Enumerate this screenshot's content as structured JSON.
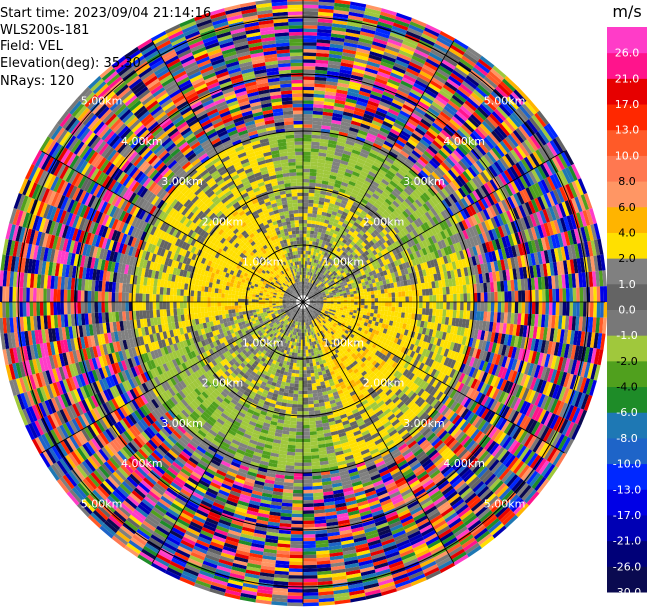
{
  "header": {
    "start_time": "Start time: 2023/09/04 21:14:16",
    "instrument": "WLS200s-181",
    "field": "Field: VEL",
    "elevation": "Elevation(deg): 35.30",
    "nrays": "NRays: 120"
  },
  "chart_data": {
    "type": "heatmap",
    "plot_kind": "ppi_polar",
    "n_rays": 120,
    "field": "VEL",
    "units": "m/s",
    "range_rings_km": [
      1.0,
      2.0,
      3.0,
      4.0,
      5.0
    ],
    "ring_labels": [
      "1.00km",
      "2.00km",
      "3.00km",
      "4.00km",
      "5.00km"
    ],
    "max_range_km": 5.3,
    "colorbar": {
      "title": "m/s",
      "boundaries": [
        -30.0,
        -26.0,
        -21.0,
        -17.0,
        -13.0,
        -10.0,
        -8.0,
        -6.0,
        -4.0,
        -2.0,
        -1.0,
        0.0,
        1.0,
        2.0,
        4.0,
        6.0,
        8.0,
        10.0,
        13.0,
        17.0,
        21.0,
        26.0
      ],
      "tick_labels": [
        "-30.0",
        "-26.0",
        "-21.0",
        "-17.0",
        "-13.0",
        "-10.0",
        "-8.0",
        "-6.0",
        "-4.0",
        "-2.0",
        "-1.0",
        "0.0",
        "1.0",
        "2.0",
        "4.0",
        "6.0",
        "8.0",
        "10.0",
        "13.0",
        "17.0",
        "21.0",
        "26.0"
      ],
      "colors_bottom_to_top": [
        "#0a0a50",
        "#000078",
        "#0000b4",
        "#0000e6",
        "#0028ff",
        "#1e64c8",
        "#1e78b4",
        "#1e8c28",
        "#50a01e",
        "#a0c83c",
        "#787878",
        "#646464",
        "#808080",
        "#ffe000",
        "#ffb400",
        "#ff9664",
        "#ff7850",
        "#ff5a28",
        "#ff2800",
        "#e60000",
        "#ff148c",
        "#ff3cc8"
      ]
    }
  }
}
